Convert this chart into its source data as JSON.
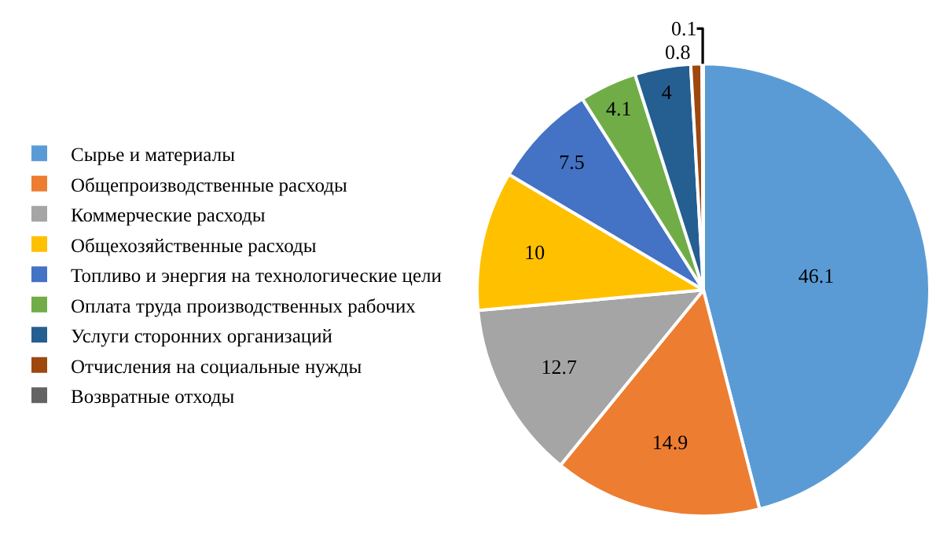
{
  "chart_data": {
    "type": "pie",
    "categories": [
      "Сырье и материалы",
      "Общепроизводственные расходы",
      "Коммерческие расходы",
      "Общехозяйственные расходы",
      "Топливо и энергия на технологические цели",
      "Оплата труда производственных рабочих",
      "Услуги сторонних организаций",
      "Отчисления на социальные нужды",
      "Возвратные отходы"
    ],
    "values": [
      46.1,
      14.9,
      12.7,
      10,
      7.5,
      4.1,
      4,
      0.8,
      0.1
    ],
    "colors": [
      "#5b9bd5",
      "#ed7d31",
      "#a5a5a5",
      "#ffc000",
      "#4472c4",
      "#70ad47",
      "#255e91",
      "#9e480e",
      "#636363"
    ],
    "data_labels": true,
    "legend": "left"
  }
}
